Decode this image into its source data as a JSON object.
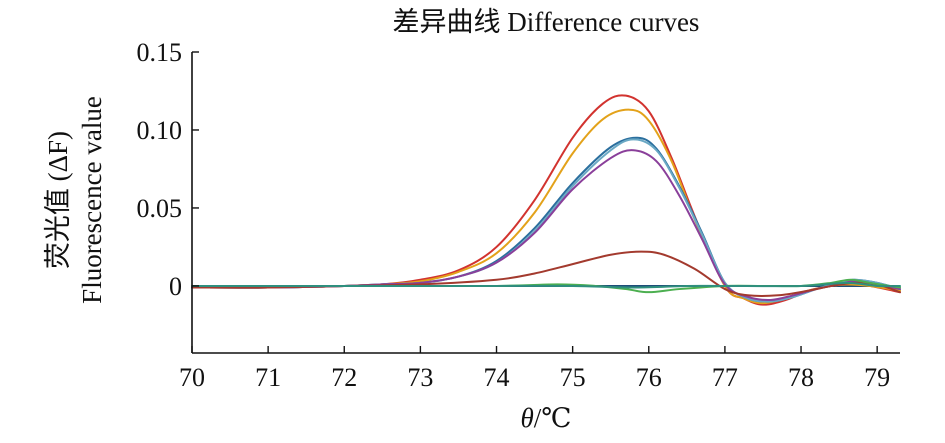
{
  "chart_data": {
    "type": "line",
    "title": "差异曲线 Difference curves",
    "xlabel_symbol": "θ",
    "xlabel_unit": "/℃",
    "ylabel_line1": "荧光值 (ΔF)",
    "ylabel_line2": "Fluorescence value",
    "xlim": [
      70,
      79.3
    ],
    "ylim": [
      -0.043,
      0.15
    ],
    "x_ticks": [
      "70",
      "71",
      "72",
      "73",
      "74",
      "75",
      "76",
      "77",
      "78",
      "79"
    ],
    "y_ticks": [
      "0",
      "0.05",
      "0.10",
      "0.15"
    ],
    "grid": false,
    "legend": "none",
    "series": [
      {
        "color": "#d2332f",
        "x": [
          70,
          71,
          72,
          72.5,
          73,
          73.5,
          74,
          74.5,
          75,
          75.4,
          75.7,
          76,
          76.3,
          76.6,
          77,
          77.25,
          77.5,
          77.8,
          78.1,
          78.4,
          78.6,
          78.9,
          79.3
        ],
        "y": [
          -0.001,
          -0.001,
          0.0,
          0.001,
          0.004,
          0.01,
          0.025,
          0.055,
          0.095,
          0.117,
          0.122,
          0.112,
          0.082,
          0.045,
          0.0,
          -0.008,
          -0.012,
          -0.009,
          -0.003,
          0.0,
          0.001,
          0.0,
          -0.004
        ]
      },
      {
        "color": "#e3a21a",
        "x": [
          70,
          71,
          72,
          72.5,
          73,
          73.5,
          74,
          74.5,
          75,
          75.4,
          75.75,
          76,
          76.3,
          76.6,
          77,
          77.25,
          77.5,
          77.8,
          78.1,
          78.4,
          78.6,
          78.9,
          79.3
        ],
        "y": [
          -0.001,
          -0.001,
          0.0,
          0.001,
          0.003,
          0.009,
          0.021,
          0.047,
          0.085,
          0.107,
          0.113,
          0.106,
          0.08,
          0.043,
          0.0,
          -0.008,
          -0.011,
          -0.008,
          -0.003,
          0.0,
          0.001,
          0.0,
          -0.003
        ]
      },
      {
        "color": "#2b6f9e",
        "x": [
          70,
          71,
          72,
          72.5,
          73,
          73.5,
          74,
          74.5,
          75,
          75.5,
          75.85,
          76.1,
          76.4,
          76.7,
          77,
          77.3,
          77.6,
          77.9,
          78.2,
          78.5,
          78.7,
          79,
          79.3
        ],
        "y": [
          -0.001,
          -0.001,
          0.0,
          0.001,
          0.002,
          0.006,
          0.016,
          0.037,
          0.066,
          0.089,
          0.095,
          0.088,
          0.064,
          0.034,
          0.002,
          -0.008,
          -0.01,
          -0.007,
          -0.002,
          0.002,
          0.004,
          0.002,
          -0.002
        ]
      },
      {
        "color": "#6aa8c4",
        "x": [
          70,
          71,
          72,
          72.5,
          73,
          73.5,
          74,
          74.5,
          75,
          75.5,
          75.8,
          76.1,
          76.4,
          76.7,
          77,
          77.3,
          77.6,
          77.9,
          78.2,
          78.5,
          78.7,
          79,
          79.3
        ],
        "y": [
          -0.001,
          -0.001,
          0.0,
          0.001,
          0.002,
          0.006,
          0.015,
          0.035,
          0.064,
          0.087,
          0.094,
          0.087,
          0.063,
          0.033,
          0.002,
          -0.008,
          -0.01,
          -0.007,
          -0.002,
          0.002,
          0.004,
          0.002,
          -0.002
        ]
      },
      {
        "color": "#8a3f9a",
        "x": [
          70,
          71,
          72,
          72.5,
          73,
          73.5,
          74,
          74.5,
          75,
          75.5,
          75.8,
          76.1,
          76.4,
          76.7,
          77,
          77.3,
          77.6,
          77.9,
          78.2,
          78.5,
          78.7,
          79,
          79.3
        ],
        "y": [
          -0.001,
          -0.001,
          0.0,
          0.001,
          0.002,
          0.006,
          0.015,
          0.034,
          0.062,
          0.082,
          0.087,
          0.08,
          0.058,
          0.03,
          0.001,
          -0.007,
          -0.009,
          -0.006,
          -0.002,
          0.001,
          0.003,
          0.001,
          -0.002
        ]
      },
      {
        "color": "#a33a2e",
        "x": [
          70,
          71,
          72,
          73,
          74,
          74.5,
          75,
          75.5,
          75.9,
          76.2,
          76.6,
          77,
          77.3,
          77.7,
          78.1,
          78.4,
          78.7,
          79,
          79.3
        ],
        "y": [
          -0.001,
          -0.001,
          0.0,
          0.001,
          0.004,
          0.008,
          0.014,
          0.02,
          0.022,
          0.02,
          0.011,
          -0.002,
          -0.006,
          -0.006,
          -0.003,
          0.0,
          0.002,
          0.001,
          -0.004
        ]
      },
      {
        "color": "#4caf50",
        "x": [
          70,
          72,
          74,
          74.8,
          75.3,
          75.7,
          76.0,
          76.4,
          77,
          77.5,
          78,
          78.4,
          78.65,
          78.9,
          79.3
        ],
        "y": [
          0.0,
          0.0,
          0.0,
          0.001,
          0.0,
          -0.002,
          -0.004,
          -0.002,
          0.0,
          0.0,
          0.0,
          0.002,
          0.004,
          0.002,
          -0.001
        ]
      },
      {
        "color": "#2f8f7e",
        "x": [
          70,
          72,
          74,
          75,
          75.8,
          76.5,
          77,
          78,
          78.6,
          79,
          79.3
        ],
        "y": [
          0.0,
          0.0,
          0.0,
          0.0,
          -0.001,
          0.0,
          0.0,
          0.0,
          0.002,
          0.0,
          0.0
        ]
      }
    ]
  }
}
